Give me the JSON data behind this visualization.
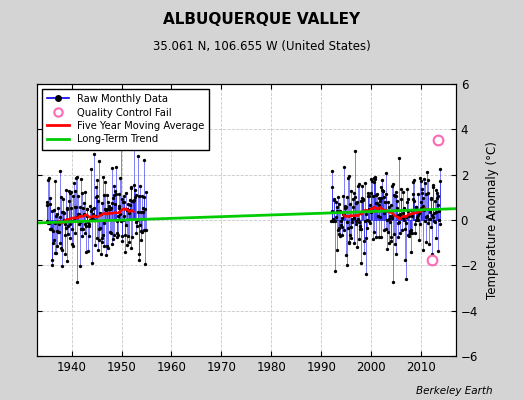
{
  "title": "ALBUQUERQUE VALLEY",
  "subtitle": "35.061 N, 106.655 W (United States)",
  "ylabel": "Temperature Anomaly (°C)",
  "credit": "Berkeley Earth",
  "ylim": [
    -6,
    6
  ],
  "xlim": [
    1933,
    2017
  ],
  "yticks": [
    -6,
    -4,
    -2,
    0,
    2,
    4,
    6
  ],
  "xticks": [
    1940,
    1950,
    1960,
    1970,
    1980,
    1990,
    2000,
    2010
  ],
  "fig_facecolor": "#d4d4d4",
  "ax_facecolor": "#ffffff",
  "raw_color": "#0000ee",
  "ma_color": "#ff0000",
  "trend_color": "#00cc00",
  "qc_color": "#ff69b4",
  "grid_color": "#c8c8c8",
  "legend_labels": [
    "Raw Monthly Data",
    "Quality Control Fail",
    "Five Year Moving Average",
    "Long-Term Trend"
  ],
  "qc_points": [
    [
      2013.5,
      3.55
    ],
    [
      2012.3,
      -1.75
    ]
  ],
  "trend_x": [
    1933,
    2017
  ],
  "trend_y": [
    -0.13,
    0.5
  ],
  "seg1_start_year": 1935,
  "seg1_end_year": 1955,
  "seg2_start_year": 1992,
  "seg2_end_year": 2014
}
